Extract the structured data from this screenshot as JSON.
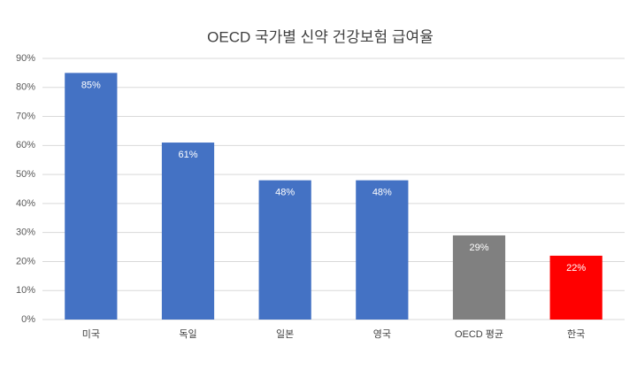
{
  "chart_data": {
    "type": "bar",
    "title": "OECD 국가별 신약 건강보험 급여율",
    "categories": [
      "미국",
      "독일",
      "일본",
      "영국",
      "OECD 평균",
      "한국"
    ],
    "values": [
      85,
      61,
      48,
      48,
      29,
      22
    ],
    "value_labels": [
      "85%",
      "61%",
      "48%",
      "48%",
      "29%",
      "22%"
    ],
    "colors": [
      "#4472c4",
      "#4472c4",
      "#4472c4",
      "#4472c4",
      "#808080",
      "#ff0000"
    ],
    "ylim": [
      0,
      90
    ],
    "yticks": [
      {
        "value": 0,
        "label": "0%"
      },
      {
        "value": 10,
        "label": "10%"
      },
      {
        "value": 20,
        "label": "20%"
      },
      {
        "value": 30,
        "label": "30%"
      },
      {
        "value": 40,
        "label": "40%"
      },
      {
        "value": 50,
        "label": "50%"
      },
      {
        "value": 60,
        "label": "60%"
      },
      {
        "value": 70,
        "label": "70%"
      },
      {
        "value": 80,
        "label": "80%"
      },
      {
        "value": 90,
        "label": "90%"
      }
    ],
    "grid": true
  }
}
